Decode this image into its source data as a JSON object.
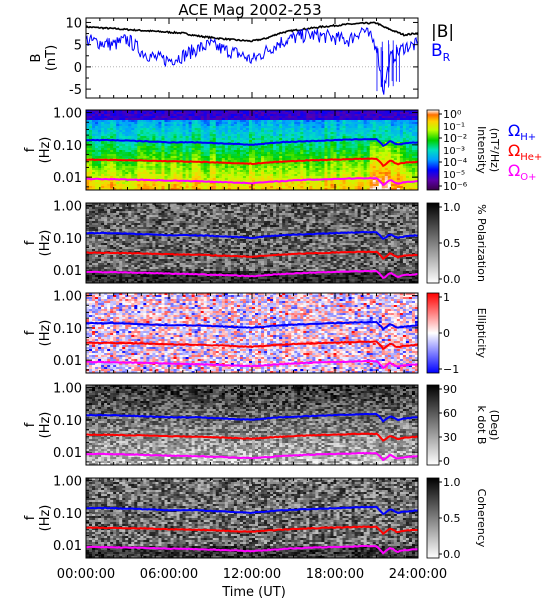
{
  "title": "ACE Mag 2002-253",
  "xaxis": {
    "label": "Time (UT)",
    "range_hours": [
      0,
      24
    ],
    "ticks": [
      {
        "h": 0,
        "label": "00:00:00"
      },
      {
        "h": 6,
        "label": "06:00:00"
      },
      {
        "h": 12,
        "label": "12:00:00"
      },
      {
        "h": 18,
        "label": "18:00:00"
      },
      {
        "h": 24,
        "label": "24:00:00"
      }
    ]
  },
  "colors": {
    "bmag": "#000000",
    "br": "#0000ff",
    "h_plus": "#0000ff",
    "he_plus": "#ff0000",
    "o_plus": "#ff00ff",
    "frame": "#000000"
  },
  "panels": {
    "b": {
      "ylabel": "B\n(nT)",
      "ylim": [
        -7,
        11
      ],
      "yticks": [
        {
          "v": 10,
          "label": "10"
        },
        {
          "v": 5,
          "label": "5"
        },
        {
          "v": 0,
          "label": "0"
        },
        {
          "v": -5,
          "label": "-5"
        }
      ],
      "legend": [
        {
          "text": "|B|",
          "sub": "",
          "color": "#000000"
        },
        {
          "text": "B",
          "sub": "R",
          "color": "#0000ff"
        }
      ]
    },
    "freq_ylabel": "f\n(Hz)",
    "freq_yticks": [
      {
        "v": 1.0,
        "label": "1.00"
      },
      {
        "v": 0.1,
        "label": "0.10"
      },
      {
        "v": 0.01,
        "label": "0.01"
      }
    ],
    "freq_ylim": [
      0.004,
      1.2
    ],
    "intensity": {
      "colorbar_label": "Intensity\n(nT²/Hz)",
      "colorbar_ticks": [
        "10⁰",
        "10⁻²",
        "10⁻⁴",
        "10⁻⁶"
      ],
      "colorbar_ticks_minor": [
        "10⁻¹",
        "10⁻³",
        "10⁻⁵"
      ],
      "cyclotron_labels": [
        {
          "text": "Ω",
          "sub": "H+",
          "color": "#0000ff"
        },
        {
          "text": "Ω",
          "sub": "He+",
          "color": "#ff0000"
        },
        {
          "text": "Ω",
          "sub": "O+",
          "color": "#ff00ff"
        }
      ]
    },
    "polarization": {
      "colorbar_label": "% Polarization",
      "colorbar_ticks": [
        "1.0",
        "0.5",
        "0.0"
      ]
    },
    "ellipticity": {
      "colorbar_label": "Ellipticity",
      "colorbar_ticks": [
        "1",
        "0",
        "−1"
      ]
    },
    "kdotb": {
      "colorbar_label": "k dot B\n(Deg)",
      "colorbar_ticks": [
        "90",
        "60",
        "30",
        "0"
      ]
    },
    "coherency": {
      "colorbar_label": "Coherency",
      "colorbar_ticks": [
        "1.0",
        "0.5",
        "0.0"
      ]
    }
  },
  "chart_data": [
    {
      "type": "line",
      "panel": "magnetic field",
      "ylabel": "B (nT)",
      "xlabel": "Time (UT)",
      "x_hours": [
        0,
        1,
        2,
        3,
        4,
        5,
        6,
        7,
        8,
        9,
        10,
        11,
        12,
        13,
        14,
        15,
        16,
        17,
        18,
        19,
        20,
        21,
        21.5,
        22,
        22.5,
        23,
        24
      ],
      "ylim": [
        -7,
        11
      ],
      "series": [
        {
          "name": "|B|",
          "values": [
            9.0,
            8.8,
            8.6,
            8.4,
            8.2,
            8.0,
            7.8,
            7.6,
            7.0,
            6.6,
            6.3,
            6.0,
            5.8,
            6.4,
            7.6,
            8.2,
            8.6,
            9.0,
            9.3,
            9.6,
            9.8,
            9.9,
            9.0,
            8.4,
            7.8,
            7.2,
            7.6
          ]
        },
        {
          "name": "B_R",
          "values": [
            6.0,
            5.5,
            5.0,
            6.2,
            3.5,
            2.0,
            1.5,
            2.5,
            4.0,
            5.0,
            3.8,
            3.0,
            1.5,
            3.5,
            5.5,
            6.5,
            7.2,
            7.0,
            6.5,
            6.0,
            8.5,
            5.0,
            -5.5,
            2.0,
            3.0,
            4.5,
            5.0
          ]
        }
      ]
    },
    {
      "type": "line",
      "panel": "ion cyclotron frequencies (overlaid on spectrograms)",
      "ylabel": "f (Hz)",
      "yscale": "log",
      "x_hours": [
        0,
        2,
        4,
        6,
        8,
        10,
        12,
        14,
        16,
        18,
        20,
        21,
        21.5,
        22,
        22.5,
        23,
        24
      ],
      "series": [
        {
          "name": "Ω H+",
          "values": [
            0.14,
            0.14,
            0.13,
            0.12,
            0.12,
            0.11,
            0.1,
            0.12,
            0.13,
            0.14,
            0.15,
            0.15,
            0.09,
            0.13,
            0.1,
            0.11,
            0.12
          ]
        },
        {
          "name": "Ω He+",
          "values": [
            0.035,
            0.034,
            0.033,
            0.031,
            0.03,
            0.028,
            0.026,
            0.03,
            0.033,
            0.035,
            0.037,
            0.037,
            0.022,
            0.033,
            0.025,
            0.028,
            0.03
          ]
        },
        {
          "name": "Ω O+",
          "values": [
            0.0088,
            0.0086,
            0.0083,
            0.0078,
            0.0075,
            0.007,
            0.0065,
            0.0075,
            0.0083,
            0.0088,
            0.0093,
            0.0093,
            0.0055,
            0.0083,
            0.0062,
            0.007,
            0.0075
          ]
        }
      ]
    }
  ]
}
